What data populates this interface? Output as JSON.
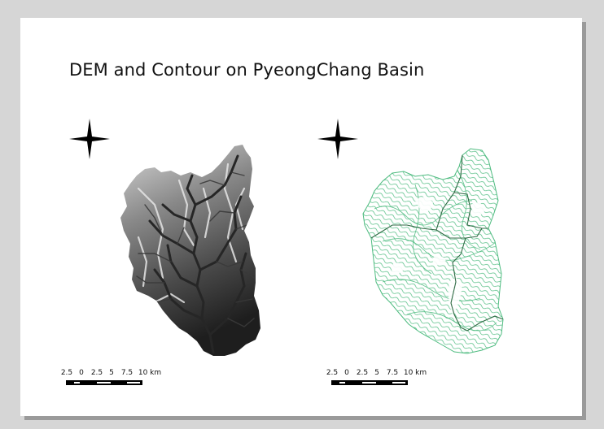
{
  "title": "DEM and Contour on PyeongChang Basin",
  "left_map": {
    "type": "dem-raster",
    "north_arrow": "north-star-icon"
  },
  "right_map": {
    "type": "contour-lines",
    "contour_color": "#4dbb7f",
    "boundary_color": "#2f6a44",
    "north_arrow": "north-star-icon"
  },
  "scalebar": {
    "labels": [
      "2.5",
      "0",
      "2.5",
      "5",
      "7.5",
      "10 km"
    ]
  }
}
